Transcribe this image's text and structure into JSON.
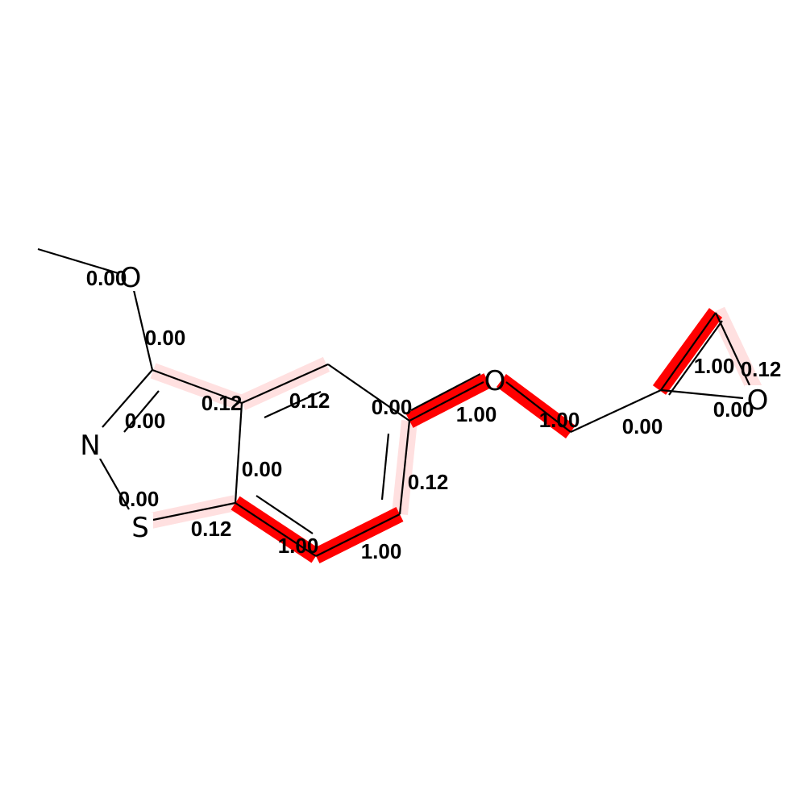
{
  "colors": {
    "highlight_strong": "#ff0000",
    "highlight_weak": "#ffe0e0",
    "bond": "#000000",
    "background": "#ffffff"
  },
  "atoms": [
    {
      "id": "a_methyl",
      "symbol": ""
    },
    {
      "id": "a_o_methoxy",
      "symbol": "O"
    },
    {
      "id": "a_c3",
      "symbol": ""
    },
    {
      "id": "a_n",
      "symbol": "N"
    },
    {
      "id": "a_s",
      "symbol": "S"
    },
    {
      "id": "a_c7a",
      "symbol": ""
    },
    {
      "id": "a_c3a",
      "symbol": ""
    },
    {
      "id": "a_c4",
      "symbol": ""
    },
    {
      "id": "a_c5",
      "symbol": ""
    },
    {
      "id": "a_c6",
      "symbol": ""
    },
    {
      "id": "a_c7",
      "symbol": ""
    },
    {
      "id": "a_o_ether",
      "symbol": "O"
    },
    {
      "id": "a_ch2",
      "symbol": ""
    },
    {
      "id": "a_ep_c1",
      "symbol": ""
    },
    {
      "id": "a_ep_c2",
      "symbol": ""
    },
    {
      "id": "a_ep_o",
      "symbol": "O"
    }
  ],
  "bonds": [
    {
      "id": "b_methyl_o",
      "weight": "0.00"
    },
    {
      "id": "b_o_c3",
      "weight": "0.00"
    },
    {
      "id": "b_c3_n",
      "weight": "0.00"
    },
    {
      "id": "b_n_s",
      "weight": "0.00"
    },
    {
      "id": "b_s_c7a",
      "weight": "0.12"
    },
    {
      "id": "b_c7a_c3a",
      "weight": "0.00"
    },
    {
      "id": "b_c3_c3a",
      "weight": "0.12"
    },
    {
      "id": "b_c3a_c4",
      "weight": "0.12"
    },
    {
      "id": "b_c4_c5",
      "weight": "0.00"
    },
    {
      "id": "b_c5_c6",
      "weight": "0.12"
    },
    {
      "id": "b_c6_c7",
      "weight": "1.00"
    },
    {
      "id": "b_c7_c7a",
      "weight": "1.00"
    },
    {
      "id": "b_c5_o",
      "weight": "1.00"
    },
    {
      "id": "b_o_ch2",
      "weight": "1.00"
    },
    {
      "id": "b_ch2_ep1",
      "weight": "0.00"
    },
    {
      "id": "b_ep1_ep2",
      "weight": "1.00"
    },
    {
      "id": "b_ep2_epo",
      "weight": "0.12"
    },
    {
      "id": "b_ep1_epo",
      "weight": "0.00"
    }
  ]
}
